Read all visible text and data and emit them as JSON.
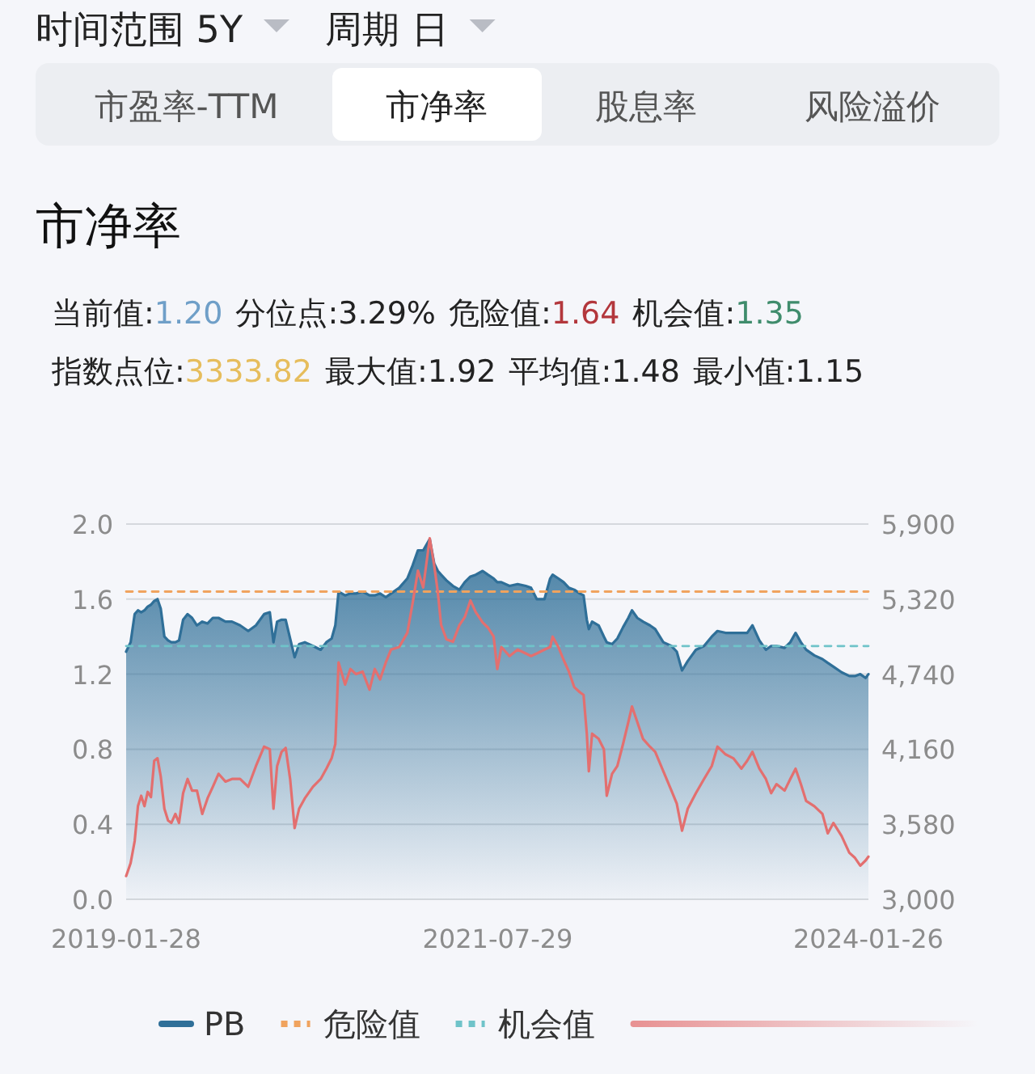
{
  "chart_data": {
    "type": "line",
    "title": "市净率",
    "annotations": [
      "时间范围 5Y",
      "周期 日",
      "市盈率-TTM",
      "市净率",
      "股息率",
      "风险溢价",
      "当前值:1.20",
      "分位点:3.29%",
      "危险值:1.64",
      "机会值:1.35",
      "指数点位:3333.82",
      "最大值:1.92",
      "平均值:1.48",
      "最小值:1.15"
    ],
    "x": [
      "2019-01-28",
      "2019-02-08",
      "2019-02-18",
      "2019-02-26",
      "2019-03-06",
      "2019-03-14",
      "2019-03-22",
      "2019-03-30",
      "2019-04-07",
      "2019-04-15",
      "2019-04-23",
      "2019-05-02",
      "2019-05-11",
      "2019-05-19",
      "2019-05-29",
      "2019-06-07",
      "2019-06-17",
      "2019-06-28",
      "2019-07-09",
      "2019-07-21",
      "2019-08-03",
      "2019-08-16",
      "2019-08-29",
      "2019-09-12",
      "2019-09-29",
      "2019-10-15",
      "2019-11-04",
      "2019-11-24",
      "2019-12-13",
      "2020-01-02",
      "2020-01-16",
      "2020-01-25",
      "2020-02-03",
      "2020-02-14",
      "2020-02-24",
      "2020-03-06",
      "2020-03-17",
      "2020-03-28",
      "2020-04-11",
      "2020-05-01",
      "2020-05-20",
      "2020-06-03",
      "2020-06-16",
      "2020-06-25",
      "2020-07-03",
      "2020-07-19",
      "2020-08-01",
      "2020-08-15",
      "2020-08-31",
      "2020-09-17",
      "2020-09-30",
      "2020-10-13",
      "2020-10-27",
      "2020-11-09",
      "2020-11-29",
      "2020-12-19",
      "2021-01-01",
      "2021-01-14",
      "2021-01-27",
      "2021-02-12",
      "2021-02-23",
      "2021-03-04",
      "2021-03-12",
      "2021-03-25",
      "2021-04-10",
      "2021-04-26",
      "2021-05-09",
      "2021-05-23",
      "2021-06-05",
      "2021-06-22",
      "2021-07-05",
      "2021-07-19",
      "2021-07-28",
      "2021-08-07",
      "2021-08-27",
      "2021-09-16",
      "2021-10-06",
      "2021-10-19",
      "2021-11-02",
      "2021-11-21",
      "2021-12-05",
      "2021-12-11",
      "2021-12-25",
      "2022-01-07",
      "2022-01-20",
      "2022-02-02",
      "2022-02-16",
      "2022-02-25",
      "2022-03-05",
      "2022-03-10",
      "2022-03-18",
      "2022-04-03",
      "2022-04-16",
      "2022-04-23",
      "2022-05-06",
      "2022-05-19",
      "2022-06-02",
      "2022-06-15",
      "2022-06-24",
      "2022-07-07",
      "2022-07-21",
      "2022-08-07",
      "2022-08-20",
      "2022-09-09",
      "2022-09-29",
      "2022-10-12",
      "2022-10-25",
      "2022-11-08",
      "2022-11-28",
      "2022-12-18",
      "2023-01-06",
      "2023-01-20",
      "2023-02-09",
      "2023-02-28",
      "2023-03-20",
      "2023-04-03",
      "2023-04-16",
      "2023-05-03",
      "2023-05-19",
      "2023-06-01",
      "2023-06-14",
      "2023-07-04",
      "2023-07-18",
      "2023-07-31",
      "2023-08-13",
      "2023-08-26",
      "2023-09-15",
      "2023-10-05",
      "2023-10-18",
      "2023-11-01",
      "2023-11-21",
      "2023-12-10",
      "2023-12-24",
      "2024-01-06",
      "2024-01-19",
      "2024-01-26"
    ],
    "series": [
      {
        "name": "PB",
        "type": "area",
        "color": "#2f6f98",
        "values": [
          1.32,
          1.37,
          1.52,
          1.54,
          1.53,
          1.54,
          1.56,
          1.57,
          1.59,
          1.6,
          1.55,
          1.4,
          1.38,
          1.37,
          1.37,
          1.38,
          1.49,
          1.52,
          1.5,
          1.46,
          1.48,
          1.47,
          1.5,
          1.5,
          1.48,
          1.48,
          1.46,
          1.43,
          1.46,
          1.52,
          1.53,
          1.37,
          1.48,
          1.49,
          1.49,
          1.39,
          1.29,
          1.36,
          1.37,
          1.35,
          1.33,
          1.37,
          1.39,
          1.46,
          1.64,
          1.62,
          1.63,
          1.63,
          1.64,
          1.62,
          1.62,
          1.63,
          1.61,
          1.63,
          1.66,
          1.71,
          1.78,
          1.86,
          1.86,
          1.92,
          1.79,
          1.75,
          1.73,
          1.7,
          1.67,
          1.65,
          1.69,
          1.72,
          1.73,
          1.75,
          1.73,
          1.71,
          1.69,
          1.69,
          1.67,
          1.68,
          1.67,
          1.66,
          1.6,
          1.6,
          1.71,
          1.73,
          1.71,
          1.69,
          1.66,
          1.65,
          1.63,
          1.62,
          1.49,
          1.44,
          1.48,
          1.46,
          1.4,
          1.37,
          1.36,
          1.39,
          1.45,
          1.5,
          1.54,
          1.5,
          1.48,
          1.46,
          1.44,
          1.37,
          1.35,
          1.32,
          1.22,
          1.27,
          1.33,
          1.35,
          1.4,
          1.43,
          1.42,
          1.42,
          1.42,
          1.42,
          1.46,
          1.38,
          1.33,
          1.35,
          1.35,
          1.34,
          1.37,
          1.42,
          1.37,
          1.33,
          1.3,
          1.28,
          1.26,
          1.24,
          1.21,
          1.19,
          1.19,
          1.2,
          1.18,
          1.2
        ]
      },
      {
        "name": "危险值",
        "color": "#f0a35e",
        "line_style": "dashed",
        "x": [
          "2019-01-28",
          "2024-01-26"
        ],
        "values": [
          1.64,
          1.64
        ]
      },
      {
        "name": "机会值",
        "color": "#6fc3c9",
        "line_style": "dashed",
        "x": [
          "2019-01-28",
          "2024-01-26"
        ],
        "values": [
          1.35,
          1.35
        ]
      },
      {
        "axis": "y2",
        "color": "#e36f6f",
        "values": [
          3180,
          3280,
          3450,
          3720,
          3800,
          3720,
          3830,
          3790,
          4070,
          4090,
          3950,
          3700,
          3610,
          3590,
          3660,
          3590,
          3820,
          3930,
          3840,
          3840,
          3660,
          3780,
          3870,
          3970,
          3910,
          3930,
          3930,
          3870,
          4030,
          4180,
          4160,
          3700,
          4030,
          4140,
          4170,
          3930,
          3550,
          3700,
          3780,
          3870,
          3930,
          4010,
          4090,
          4200,
          4830,
          4660,
          4780,
          4740,
          4760,
          4620,
          4780,
          4700,
          4830,
          4930,
          4950,
          5060,
          5290,
          5540,
          5410,
          5790,
          5580,
          5370,
          5120,
          5010,
          4990,
          5120,
          5180,
          5310,
          5220,
          5140,
          5100,
          5030,
          4780,
          4950,
          4880,
          4930,
          4900,
          4880,
          4900,
          4930,
          4950,
          5030,
          4950,
          4850,
          4760,
          4640,
          4600,
          4580,
          4280,
          3990,
          4280,
          4240,
          4160,
          3800,
          3970,
          4030,
          4200,
          4370,
          4490,
          4370,
          4240,
          4180,
          4140,
          3990,
          3840,
          3740,
          3530,
          3700,
          3820,
          3930,
          4030,
          4180,
          4120,
          4090,
          4010,
          4070,
          4140,
          4010,
          3930,
          3820,
          3890,
          3840,
          3930,
          4010,
          3890,
          3760,
          3720,
          3660,
          3510,
          3590,
          3490,
          3360,
          3320,
          3260,
          3300,
          3330
        ]
      }
    ],
    "xlim": [
      "2019-01-28",
      "2024-01-26"
    ],
    "xticks": [
      "2019-01-28",
      "2021-07-29",
      "2024-01-26"
    ],
    "ylim": [
      0,
      2.0
    ],
    "yticks": [
      {
        "value": 0,
        "label": "0.0"
      },
      0.4,
      0.8,
      1.2,
      1.6,
      {
        "value": 2.0,
        "label": "2.0"
      }
    ],
    "y2lim": [
      3000,
      5900
    ],
    "y2ticks": [
      {
        "value": 3000,
        "label": "3,000"
      },
      {
        "value": 3580,
        "label": "3,580"
      },
      {
        "value": 4160,
        "label": "4,160"
      },
      {
        "value": 4740,
        "label": "4,740"
      },
      {
        "value": 5320,
        "label": "5,320"
      },
      {
        "value": 5900,
        "label": "5,900"
      }
    ],
    "grid": "y",
    "legend": "bottom"
  }
}
